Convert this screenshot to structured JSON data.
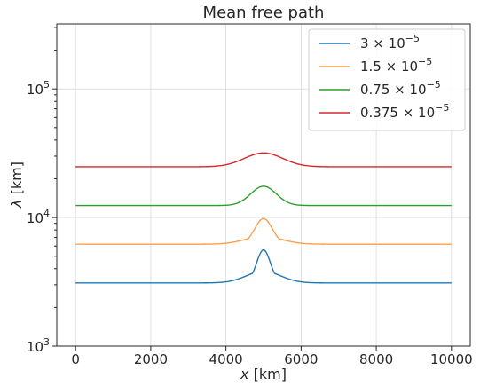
{
  "chart_data": {
    "type": "line",
    "title": "Mean free path",
    "xlabel_italic": "x",
    "xlabel_unit": " [km]",
    "ylabel_italic": "λ",
    "ylabel_unit": " [km]",
    "xlim": [
      -500,
      10500
    ],
    "ylim": [
      1000,
      320000
    ],
    "yscale": "log",
    "grid": true,
    "legend_position": "top-right",
    "x_ticks": [
      0,
      2000,
      4000,
      6000,
      8000,
      10000
    ],
    "x_tick_labels": [
      "0",
      "2000",
      "4000",
      "6000",
      "8000",
      "10000"
    ],
    "y_ticks": [
      1000,
      10000,
      100000
    ],
    "y_tick_base": "10",
    "y_tick_exponents": [
      "3",
      "4",
      "5"
    ],
    "series": [
      {
        "name_mantissa": "3",
        "name_exp": "−5",
        "color": "#1f77b4",
        "base": 3100,
        "peak": 5600,
        "center": 5000,
        "width": 260,
        "shoulder": 0.35,
        "shoulder_width": 650
      },
      {
        "name_mantissa": "1.5",
        "name_exp": "−5",
        "color": "#ff9e4a",
        "base": 6200,
        "peak": 9800,
        "center": 5000,
        "width": 330,
        "shoulder": 0.3,
        "shoulder_width": 700
      },
      {
        "name_mantissa": "0.75",
        "name_exp": "−5",
        "color": "#2ca02c",
        "base": 12400,
        "peak": 17500,
        "center": 5000,
        "width": 480,
        "shoulder": 0.0,
        "shoulder_width": 700
      },
      {
        "name_mantissa": "0.375",
        "name_exp": "−5",
        "color": "#d62728",
        "base": 24800,
        "peak": 31800,
        "center": 5000,
        "width": 720,
        "shoulder": 0.0,
        "shoulder_width": 700
      }
    ]
  }
}
